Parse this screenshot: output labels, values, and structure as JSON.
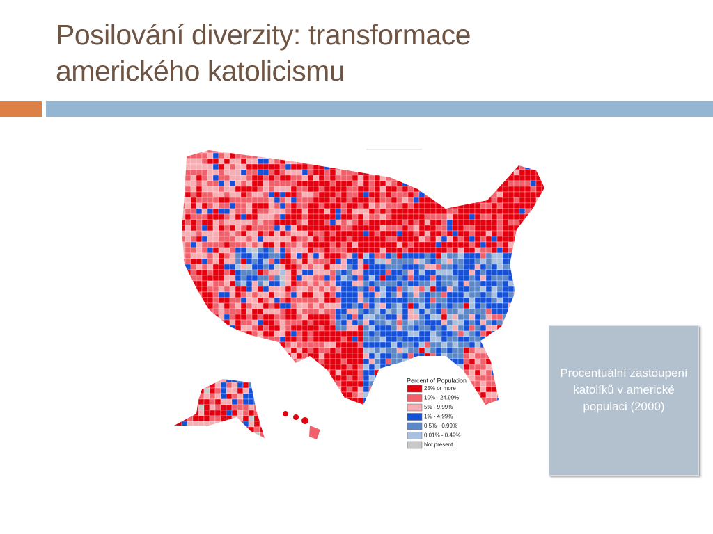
{
  "slide": {
    "title": [
      "Posilování diverzity: transformace",
      "amerického katolicismu"
    ],
    "map": {
      "legend_title": "Percent of Population",
      "legend": [
        {
          "label": "25% or more",
          "color": "#e3000f"
        },
        {
          "label": "10% - 24.99%",
          "color": "#f0616b"
        },
        {
          "label": "5% - 9.99%",
          "color": "#f7aeb2"
        },
        {
          "label": "1% - 4.99%",
          "color": "#1550d8"
        },
        {
          "label": "0.5% - 0.99%",
          "color": "#5d88c8"
        },
        {
          "label": "0.01% - 0.49%",
          "color": "#a9c0e0"
        },
        {
          "label": "Not present",
          "color": "#c8c8c8"
        }
      ]
    },
    "caption": "Procentuální zastoupení katolíků v americké populaci (2000)"
  }
}
